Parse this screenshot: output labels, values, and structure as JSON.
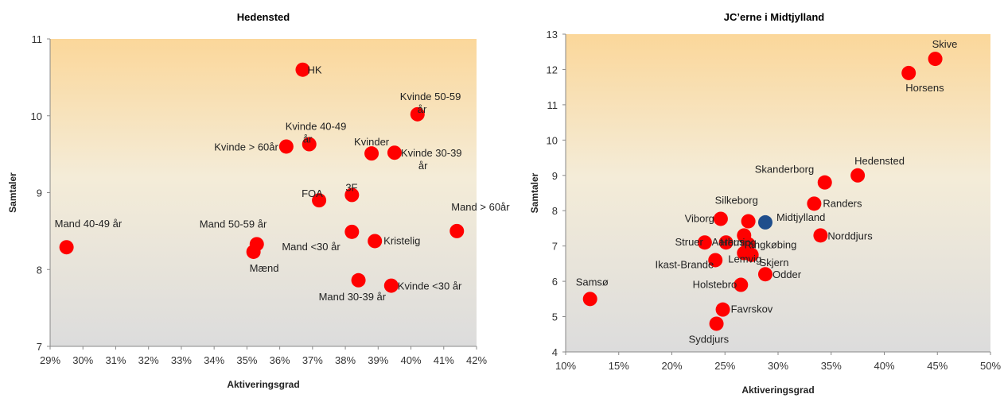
{
  "chart_data": [
    {
      "type": "scatter",
      "title": "Hedensted",
      "xlabel": "Aktiveringsgrad",
      "ylabel": "Samtaler",
      "xlim": [
        0.29,
        0.42
      ],
      "ylim": [
        7,
        11
      ],
      "xticks": [
        "29%",
        "30%",
        "31%",
        "32%",
        "33%",
        "34%",
        "35%",
        "36%",
        "37%",
        "38%",
        "39%",
        "40%",
        "41%",
        "42%"
      ],
      "yticks": [
        "7",
        "8",
        "9",
        "10",
        "11"
      ],
      "grid": false,
      "points": [
        {
          "label": "HK",
          "x": 0.367,
          "y": 10.6,
          "color": "#ff0000"
        },
        {
          "label": "Kvinde 50-59 år",
          "x": 0.402,
          "y": 10.02,
          "color": "#ff0000"
        },
        {
          "label": "Kvinde 40-49 år",
          "x": 0.369,
          "y": 9.63,
          "color": "#ff0000"
        },
        {
          "label": "Kvinde > 60år",
          "x": 0.362,
          "y": 9.6,
          "color": "#ff0000"
        },
        {
          "label": "Kvinder",
          "x": 0.388,
          "y": 9.51,
          "color": "#ff0000"
        },
        {
          "label": "Kvinde 30-39 år",
          "x": 0.395,
          "y": 9.52,
          "color": "#ff0000"
        },
        {
          "label": "3F",
          "x": 0.382,
          "y": 8.97,
          "color": "#ff0000"
        },
        {
          "label": "FOA",
          "x": 0.372,
          "y": 8.9,
          "color": "#ff0000"
        },
        {
          "label": "Mand > 60år",
          "x": 0.414,
          "y": 8.5,
          "color": "#ff0000"
        },
        {
          "label": "Mand 40-49 år",
          "x": 0.295,
          "y": 8.29,
          "color": "#ff0000"
        },
        {
          "label": "Mand 50-59 år",
          "x": 0.353,
          "y": 8.33,
          "color": "#ff0000"
        },
        {
          "label": "Mænd",
          "x": 0.352,
          "y": 8.23,
          "color": "#ff0000"
        },
        {
          "label": "Mand <30 år",
          "x": 0.382,
          "y": 8.49,
          "color": "#ff0000"
        },
        {
          "label": "Kristelig",
          "x": 0.389,
          "y": 8.37,
          "color": "#ff0000"
        },
        {
          "label": "Mand 30-39 år",
          "x": 0.384,
          "y": 7.86,
          "color": "#ff0000"
        },
        {
          "label": "Kvinde <30 år",
          "x": 0.394,
          "y": 7.79,
          "color": "#ff0000"
        }
      ]
    },
    {
      "type": "scatter",
      "title": "JC’erne i Midtjylland",
      "xlabel": "Aktiveringsgrad",
      "ylabel": "Samtaler",
      "xlim": [
        0.1,
        0.5
      ],
      "ylim": [
        4,
        13
      ],
      "xticks": [
        "10%",
        "15%",
        "20%",
        "25%",
        "30%",
        "35%",
        "40%",
        "45%",
        "50%"
      ],
      "yticks": [
        "4",
        "5",
        "6",
        "7",
        "8",
        "9",
        "10",
        "11",
        "12",
        "13"
      ],
      "grid": false,
      "points": [
        {
          "label": "Skive",
          "x": 0.448,
          "y": 12.3,
          "color": "#ff0000"
        },
        {
          "label": "Horsens",
          "x": 0.423,
          "y": 11.9,
          "color": "#ff0000"
        },
        {
          "label": "Hedensted",
          "x": 0.375,
          "y": 9.0,
          "color": "#ff0000"
        },
        {
          "label": "Skanderborg",
          "x": 0.344,
          "y": 8.8,
          "color": "#ff0000"
        },
        {
          "label": "Randers",
          "x": 0.334,
          "y": 8.2,
          "color": "#ff0000"
        },
        {
          "label": "Silkeborg",
          "x": 0.272,
          "y": 7.7,
          "color": "#ff0000"
        },
        {
          "label": "Viborg",
          "x": 0.246,
          "y": 7.77,
          "color": "#ff0000"
        },
        {
          "label": "Midtjylland",
          "x": 0.288,
          "y": 7.67,
          "color": "#1f4e8c"
        },
        {
          "label": "Norddjurs",
          "x": 0.34,
          "y": 7.3,
          "color": "#ff0000"
        },
        {
          "label": "Herning",
          "x": 0.268,
          "y": 7.3,
          "color": "#ff0000"
        },
        {
          "label": "Ringkøbing",
          "x": 0.272,
          "y": 7.05,
          "color": "#ff0000"
        },
        {
          "label": "Aarhus",
          "x": 0.251,
          "y": 7.1,
          "color": "#ff0000"
        },
        {
          "label": "Struer",
          "x": 0.231,
          "y": 7.1,
          "color": "#ff0000"
        },
        {
          "label": "Lemvig",
          "x": 0.268,
          "y": 6.8,
          "color": "#ff0000"
        },
        {
          "label": "Ikast-Brande",
          "x": 0.241,
          "y": 6.6,
          "color": "#ff0000"
        },
        {
          "label": "Skjern",
          "x": 0.275,
          "y": 6.75,
          "color": "#ff0000"
        },
        {
          "label": "Odder",
          "x": 0.288,
          "y": 6.2,
          "color": "#ff0000"
        },
        {
          "label": "Holstebro",
          "x": 0.265,
          "y": 5.9,
          "color": "#ff0000"
        },
        {
          "label": "Samsø",
          "x": 0.123,
          "y": 5.5,
          "color": "#ff0000"
        },
        {
          "label": "Favrskov",
          "x": 0.248,
          "y": 5.2,
          "color": "#ff0000"
        },
        {
          "label": "Syddjurs",
          "x": 0.242,
          "y": 4.8,
          "color": "#ff0000"
        }
      ]
    }
  ]
}
